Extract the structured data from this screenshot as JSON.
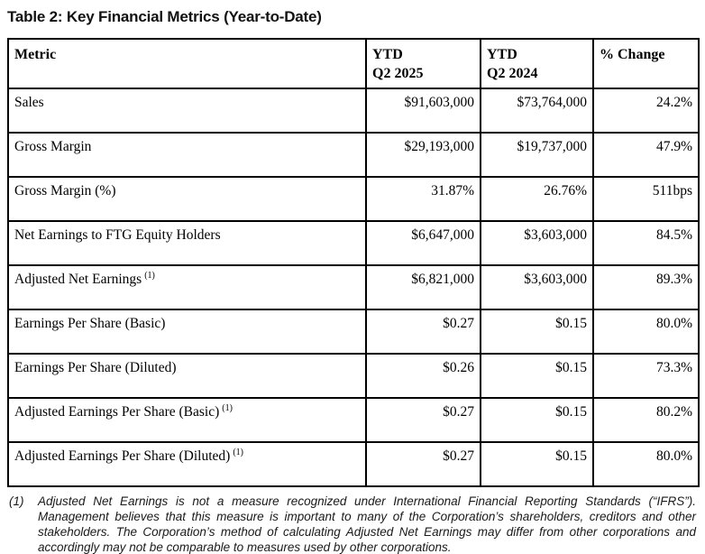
{
  "title": "Table 2: Key Financial Metrics (Year-to-Date)",
  "table": {
    "columns": [
      {
        "label": "Metric"
      },
      {
        "line1": "YTD",
        "line2": "Q2 2025"
      },
      {
        "line1": "YTD",
        "line2": "Q2 2024"
      },
      {
        "label": "% Change"
      }
    ],
    "rows": [
      {
        "metric": "Sales",
        "ytd_2025": "$91,603,000",
        "ytd_2024": "$73,764,000",
        "change": "24.2%"
      },
      {
        "metric": "Gross Margin",
        "ytd_2025": "$29,193,000",
        "ytd_2024": "$19,737,000",
        "change": "47.9%"
      },
      {
        "metric": "Gross Margin (%)",
        "ytd_2025": "31.87%",
        "ytd_2024": "26.76%",
        "change": "511bps"
      },
      {
        "metric": "Net Earnings to FTG Equity Holders",
        "ytd_2025": "$6,647,000",
        "ytd_2024": "$3,603,000",
        "change": "84.5%"
      },
      {
        "metric": "Adjusted Net Earnings",
        "note": "(1)",
        "ytd_2025": "$6,821,000",
        "ytd_2024": "$3,603,000",
        "change": "89.3%"
      },
      {
        "metric": "Earnings Per Share (Basic)",
        "ytd_2025": "$0.27",
        "ytd_2024": "$0.15",
        "change": "80.0%"
      },
      {
        "metric": "Earnings Per Share (Diluted)",
        "ytd_2025": "$0.26",
        "ytd_2024": "$0.15",
        "change": "73.3%"
      },
      {
        "metric": "Adjusted Earnings Per Share (Basic)",
        "note": "(1)",
        "ytd_2025": "$0.27",
        "ytd_2024": "$0.15",
        "change": "80.2%"
      },
      {
        "metric": "Adjusted Earnings Per Share (Diluted)",
        "note": "(1)",
        "ytd_2025": "$0.27",
        "ytd_2024": "$0.15",
        "change": "80.0%"
      }
    ]
  },
  "footnote": {
    "marker": "(1)",
    "text": "Adjusted Net Earnings is not a measure recognized under International Financial Reporting Standards (“IFRS”). Management believes that this measure is important to many of the Corporation’s shareholders, creditors and other stakeholders. The Corporation’s method of calculating Adjusted Net Earnings may differ from other corporations and accordingly may not be comparable to measures used by other corporations."
  }
}
